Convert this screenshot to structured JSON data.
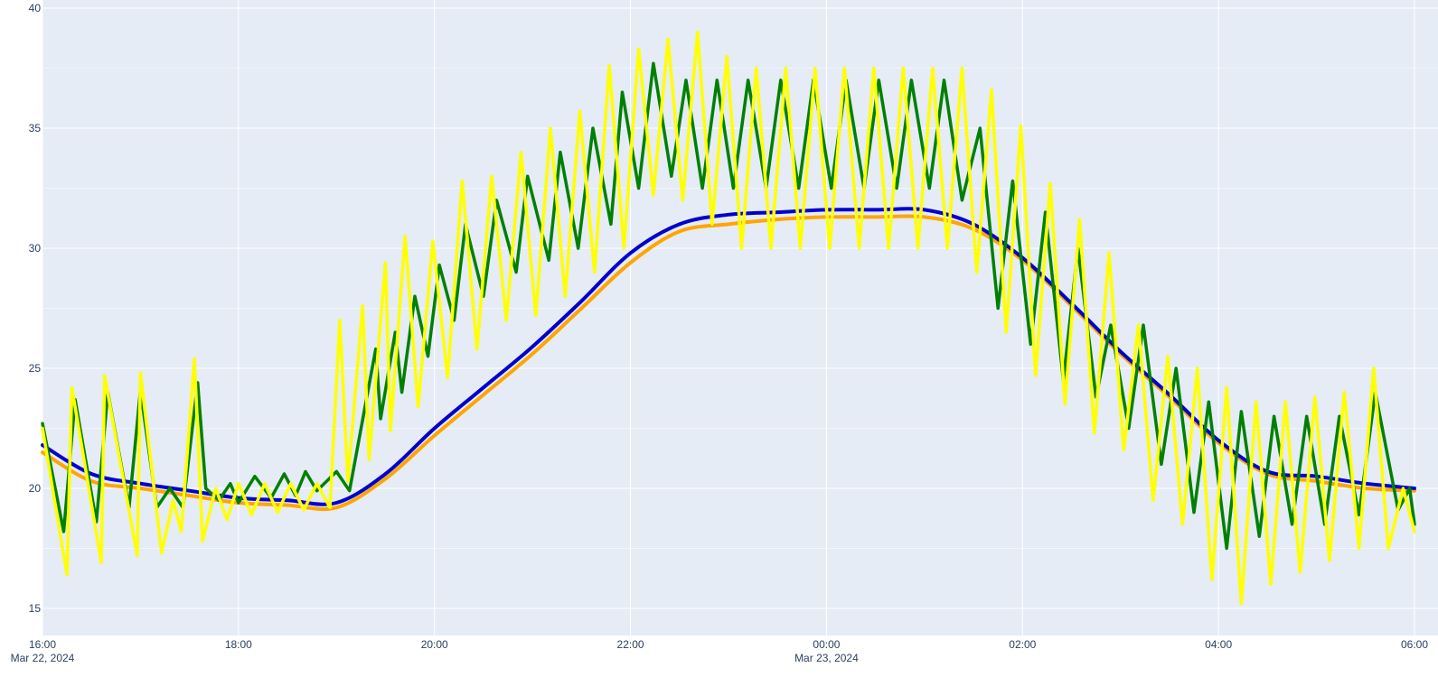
{
  "colors": {
    "plot_background": "#e5ecf6",
    "grid": "#ffffff",
    "tick_text": "#2a3f5f"
  },
  "chart_data": {
    "type": "line",
    "title": "",
    "xlabel": "",
    "ylabel": "",
    "x_range": [
      "2024-03-22 16:00",
      "2024-03-23 06:00"
    ],
    "ylim": [
      14.3,
      40
    ],
    "grid": true,
    "legend": "none",
    "x_ticks": [
      {
        "value": "2024-03-22 16:00",
        "time": "16:00",
        "date": "Mar 22, 2024"
      },
      {
        "value": "2024-03-22 18:00",
        "time": "18:00",
        "date": ""
      },
      {
        "value": "2024-03-22 20:00",
        "time": "20:00",
        "date": ""
      },
      {
        "value": "2024-03-22 22:00",
        "time": "22:00",
        "date": ""
      },
      {
        "value": "2024-03-23 00:00",
        "time": "00:00",
        "date": "Mar 23, 2024"
      },
      {
        "value": "2024-03-23 02:00",
        "time": "02:00",
        "date": ""
      },
      {
        "value": "2024-03-23 04:00",
        "time": "04:00",
        "date": ""
      },
      {
        "value": "2024-03-23 06:00",
        "time": "06:00",
        "date": ""
      }
    ],
    "y_ticks": [
      15,
      20,
      25,
      30,
      35,
      40
    ],
    "series": [
      {
        "color": "#ffa500",
        "style": "smooth",
        "x": [
          "2024-03-22 16:00",
          "2024-03-22 16:30",
          "2024-03-22 17:00",
          "2024-03-22 17:30",
          "2024-03-22 18:00",
          "2024-03-22 18:30",
          "2024-03-22 19:00",
          "2024-03-22 19:30",
          "2024-03-22 20:00",
          "2024-03-22 20:30",
          "2024-03-22 21:00",
          "2024-03-22 21:30",
          "2024-03-22 22:00",
          "2024-03-22 22:30",
          "2024-03-22 23:00",
          "2024-03-22 23:30",
          "2024-03-23 00:00",
          "2024-03-23 00:30",
          "2024-03-23 01:00",
          "2024-03-23 01:30",
          "2024-03-23 02:00",
          "2024-03-23 02:30",
          "2024-03-23 03:00",
          "2024-03-23 03:30",
          "2024-03-23 04:00",
          "2024-03-23 04:30",
          "2024-03-23 05:00",
          "2024-03-23 05:30",
          "2024-03-23 06:00"
        ],
        "y": [
          21.5,
          20.3,
          20.0,
          19.7,
          19.4,
          19.3,
          19.2,
          20.4,
          22.2,
          23.9,
          25.6,
          27.5,
          29.4,
          30.7,
          31.0,
          31.2,
          31.3,
          31.3,
          31.3,
          30.8,
          29.5,
          27.6,
          25.6,
          23.8,
          21.9,
          20.6,
          20.3,
          20.0,
          19.9
        ]
      },
      {
        "color": "#0000cd",
        "style": "smooth",
        "x": [
          "2024-03-22 16:00",
          "2024-03-22 16:30",
          "2024-03-22 17:00",
          "2024-03-22 17:30",
          "2024-03-22 18:00",
          "2024-03-22 18:30",
          "2024-03-22 19:00",
          "2024-03-22 19:30",
          "2024-03-22 20:00",
          "2024-03-22 20:30",
          "2024-03-22 21:00",
          "2024-03-22 21:30",
          "2024-03-22 22:00",
          "2024-03-22 22:30",
          "2024-03-22 23:00",
          "2024-03-22 23:30",
          "2024-03-23 00:00",
          "2024-03-23 00:30",
          "2024-03-23 01:00",
          "2024-03-23 01:30",
          "2024-03-23 02:00",
          "2024-03-23 02:30",
          "2024-03-23 03:00",
          "2024-03-23 03:30",
          "2024-03-23 04:00",
          "2024-03-23 04:30",
          "2024-03-23 05:00",
          "2024-03-23 05:30",
          "2024-03-23 06:00"
        ],
        "y": [
          21.8,
          20.6,
          20.2,
          19.9,
          19.6,
          19.5,
          19.4,
          20.6,
          22.5,
          24.2,
          25.9,
          27.8,
          29.8,
          31.0,
          31.4,
          31.5,
          31.6,
          31.6,
          31.6,
          31.0,
          29.6,
          27.7,
          25.7,
          23.9,
          22.0,
          20.7,
          20.5,
          20.2,
          20.0
        ]
      },
      {
        "color": "#008000",
        "style": "zigzag",
        "x": [
          "2024-03-22 16:00",
          "2024-03-22 16:13",
          "2024-03-22 16:20",
          "2024-03-22 16:33",
          "2024-03-22 16:40",
          "2024-03-22 16:53",
          "2024-03-22 17:00",
          "2024-03-22 17:10",
          "2024-03-22 17:18",
          "2024-03-22 17:26",
          "2024-03-22 17:35",
          "2024-03-22 17:40",
          "2024-03-22 17:48",
          "2024-03-22 17:55",
          "2024-03-22 18:00",
          "2024-03-22 18:10",
          "2024-03-22 18:20",
          "2024-03-22 18:28",
          "2024-03-22 18:35",
          "2024-03-22 18:41",
          "2024-03-22 18:48",
          "2024-03-22 19:00",
          "2024-03-22 19:08",
          "2024-03-22 19:24",
          "2024-03-22 19:27",
          "2024-03-22 19:36",
          "2024-03-22 19:40",
          "2024-03-22 19:48",
          "2024-03-22 19:56",
          "2024-03-22 20:03",
          "2024-03-22 20:12",
          "2024-03-22 20:19",
          "2024-03-22 20:30",
          "2024-03-22 20:38",
          "2024-03-22 20:50",
          "2024-03-22 20:57",
          "2024-03-22 21:10",
          "2024-03-22 21:17",
          "2024-03-22 21:28",
          "2024-03-22 21:37",
          "2024-03-22 21:48",
          "2024-03-22 21:55",
          "2024-03-22 22:05",
          "2024-03-22 22:14",
          "2024-03-22 22:25",
          "2024-03-22 22:34",
          "2024-03-22 22:44",
          "2024-03-22 22:53",
          "2024-03-22 23:03",
          "2024-03-22 23:12",
          "2024-03-22 23:23",
          "2024-03-22 23:32",
          "2024-03-22 23:43",
          "2024-03-22 23:52",
          "2024-03-23 00:03",
          "2024-03-23 00:12",
          "2024-03-23 00:23",
          "2024-03-23 00:32",
          "2024-03-23 00:43",
          "2024-03-23 00:52",
          "2024-03-23 01:03",
          "2024-03-23 01:12",
          "2024-03-23 01:23",
          "2024-03-23 01:34",
          "2024-03-23 01:45",
          "2024-03-23 01:54",
          "2024-03-23 02:05",
          "2024-03-23 02:14",
          "2024-03-23 02:25",
          "2024-03-23 02:34",
          "2024-03-23 02:45",
          "2024-03-23 02:54",
          "2024-03-23 03:05",
          "2024-03-23 03:14",
          "2024-03-23 03:25",
          "2024-03-23 03:34",
          "2024-03-23 03:45",
          "2024-03-23 03:54",
          "2024-03-23 04:05",
          "2024-03-23 04:14",
          "2024-03-23 04:25",
          "2024-03-23 04:34",
          "2024-03-23 04:45",
          "2024-03-23 04:54",
          "2024-03-23 05:05",
          "2024-03-23 05:14",
          "2024-03-23 05:26",
          "2024-03-23 05:36",
          "2024-03-23 05:50",
          "2024-03-23 05:57",
          "2024-03-23 06:00"
        ],
        "y": [
          22.7,
          18.2,
          23.7,
          18.6,
          24.0,
          19.2,
          24.1,
          19.2,
          20.0,
          19.2,
          24.4,
          20.0,
          19.5,
          20.2,
          19.4,
          20.5,
          19.6,
          20.6,
          19.7,
          20.7,
          19.9,
          20.7,
          19.9,
          25.8,
          22.9,
          26.5,
          24.0,
          28.0,
          25.5,
          29.3,
          27.0,
          31.0,
          28.0,
          32.0,
          29.0,
          33.0,
          29.5,
          34.0,
          30.0,
          35.0,
          31.0,
          36.5,
          32.5,
          37.7,
          33.0,
          37.0,
          32.5,
          37.0,
          32.5,
          37.0,
          32.5,
          37.0,
          32.5,
          37.0,
          32.5,
          37.0,
          32.5,
          37.0,
          32.5,
          37.0,
          32.5,
          37.0,
          32.0,
          35.0,
          27.5,
          32.8,
          26.0,
          31.5,
          24.5,
          30.0,
          23.8,
          26.8,
          22.5,
          26.8,
          21.0,
          25.0,
          19.0,
          23.6,
          17.5,
          23.2,
          18.0,
          23.0,
          18.5,
          23.0,
          18.5,
          23.0,
          18.9,
          24.0,
          19.1,
          20.0,
          18.5
        ]
      },
      {
        "color": "#ffff00",
        "style": "zigzag",
        "x": [
          "2024-03-22 16:00",
          "2024-03-22 16:15",
          "2024-03-22 16:18",
          "2024-03-22 16:36",
          "2024-03-22 16:38",
          "2024-03-22 16:58",
          "2024-03-22 17:00",
          "2024-03-22 17:13",
          "2024-03-22 17:20",
          "2024-03-22 17:25",
          "2024-03-22 17:33",
          "2024-03-22 17:38",
          "2024-03-22 17:46",
          "2024-03-22 17:53",
          "2024-03-22 18:00",
          "2024-03-22 18:08",
          "2024-03-22 18:16",
          "2024-03-22 18:24",
          "2024-03-22 18:32",
          "2024-03-22 18:40",
          "2024-03-22 18:48",
          "2024-03-22 18:56",
          "2024-03-22 19:02",
          "2024-03-22 19:07",
          "2024-03-22 19:16",
          "2024-03-22 19:20",
          "2024-03-22 19:30",
          "2024-03-22 19:33",
          "2024-03-22 19:42",
          "2024-03-22 19:50",
          "2024-03-22 19:59",
          "2024-03-22 20:08",
          "2024-03-22 20:17",
          "2024-03-22 20:26",
          "2024-03-22 20:35",
          "2024-03-22 20:44",
          "2024-03-22 20:53",
          "2024-03-22 21:02",
          "2024-03-22 21:11",
          "2024-03-22 21:20",
          "2024-03-22 21:29",
          "2024-03-22 21:38",
          "2024-03-22 21:47",
          "2024-03-22 21:56",
          "2024-03-22 22:05",
          "2024-03-22 22:14",
          "2024-03-22 22:23",
          "2024-03-22 22:32",
          "2024-03-22 22:41",
          "2024-03-22 22:50",
          "2024-03-22 22:59",
          "2024-03-22 23:08",
          "2024-03-22 23:17",
          "2024-03-22 23:26",
          "2024-03-22 23:35",
          "2024-03-22 23:44",
          "2024-03-22 23:53",
          "2024-03-23 00:02",
          "2024-03-23 00:11",
          "2024-03-23 00:20",
          "2024-03-23 00:29",
          "2024-03-23 00:38",
          "2024-03-23 00:47",
          "2024-03-23 00:56",
          "2024-03-23 01:05",
          "2024-03-23 01:14",
          "2024-03-23 01:23",
          "2024-03-23 01:32",
          "2024-03-23 01:41",
          "2024-03-23 01:50",
          "2024-03-23 01:59",
          "2024-03-23 02:08",
          "2024-03-23 02:17",
          "2024-03-23 02:26",
          "2024-03-23 02:35",
          "2024-03-23 02:44",
          "2024-03-23 02:53",
          "2024-03-23 03:02",
          "2024-03-23 03:11",
          "2024-03-23 03:20",
          "2024-03-23 03:29",
          "2024-03-23 03:38",
          "2024-03-23 03:47",
          "2024-03-23 03:56",
          "2024-03-23 04:05",
          "2024-03-23 04:14",
          "2024-03-23 04:23",
          "2024-03-23 04:32",
          "2024-03-23 04:41",
          "2024-03-23 04:50",
          "2024-03-23 04:59",
          "2024-03-23 05:08",
          "2024-03-23 05:17",
          "2024-03-23 05:26",
          "2024-03-23 05:35",
          "2024-03-23 05:44",
          "2024-03-23 05:53",
          "2024-03-23 06:00"
        ],
        "y": [
          22.5,
          16.4,
          24.2,
          16.9,
          24.7,
          17.2,
          24.8,
          17.3,
          19.5,
          18.2,
          25.4,
          17.8,
          20.0,
          18.7,
          20.2,
          18.9,
          20.2,
          19.0,
          20.2,
          19.1,
          20.2,
          19.2,
          27.0,
          20.3,
          27.6,
          21.2,
          29.4,
          22.4,
          30.5,
          23.4,
          30.3,
          24.6,
          32.8,
          25.8,
          33.0,
          27.0,
          34.0,
          27.2,
          35.0,
          28.0,
          35.7,
          29.0,
          37.6,
          30.0,
          38.3,
          32.2,
          38.7,
          32.0,
          39.0,
          31.0,
          38.0,
          30.0,
          37.5,
          30.0,
          37.5,
          30.0,
          37.5,
          30.0,
          37.5,
          30.0,
          37.5,
          30.0,
          37.5,
          30.0,
          37.5,
          30.0,
          37.5,
          29.0,
          36.6,
          26.5,
          35.1,
          24.7,
          32.7,
          23.5,
          31.2,
          22.3,
          29.8,
          21.6,
          26.8,
          19.5,
          25.5,
          18.5,
          25.0,
          16.2,
          24.2,
          15.2,
          23.6,
          16.0,
          23.6,
          16.5,
          23.8,
          17.0,
          24.0,
          17.5,
          25.0,
          17.5,
          20.0,
          18.2
        ]
      }
    ]
  }
}
